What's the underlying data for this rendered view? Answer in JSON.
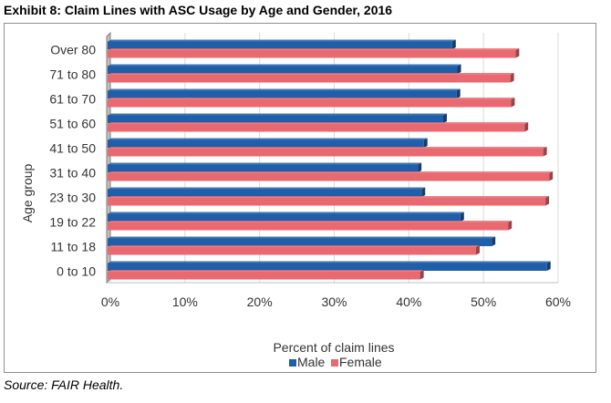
{
  "exhibit_title": "Exhibit 8: Claim Lines with ASC Usage by Age and Gender, 2016",
  "source": "Source: FAIR Health.",
  "colors": {
    "male": "#1f5ea8",
    "female": "#e8696f",
    "grid": "#d9d9d9"
  },
  "chart_data": {
    "type": "bar",
    "orientation": "horizontal",
    "title": "",
    "xlabel": "Percent of claim lines",
    "ylabel": "Age group",
    "xlim": [
      0,
      60
    ],
    "x_ticks": [
      "0%",
      "10%",
      "20%",
      "30%",
      "40%",
      "50%",
      "60%"
    ],
    "grid": true,
    "legend_position": "bottom",
    "categories": [
      "Over 80",
      "71 to 80",
      "61 to 70",
      "51 to 60",
      "41 to 50",
      "31 to 40",
      "23 to 30",
      "19 to 22",
      "11 to 18",
      "0 to 10"
    ],
    "series": [
      {
        "name": "Male",
        "values": [
          45.8,
          46.5,
          46.4,
          44.6,
          42.0,
          41.2,
          41.7,
          46.9,
          51.1,
          58.5
        ]
      },
      {
        "name": "Female",
        "values": [
          54.3,
          53.6,
          53.7,
          55.5,
          58.0,
          58.8,
          58.3,
          53.3,
          49.0,
          41.5
        ]
      }
    ]
  }
}
